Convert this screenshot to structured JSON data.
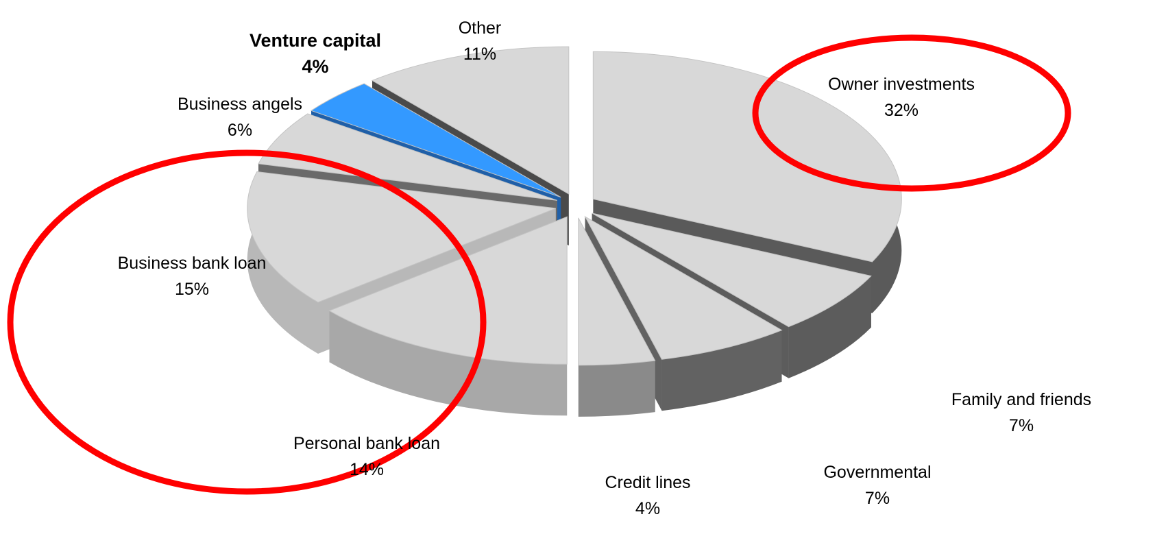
{
  "chart_data": {
    "type": "pie",
    "variant": "3d-exploded",
    "title": "",
    "slices": [
      {
        "label": "Owner investments",
        "value": 32,
        "value_label": "32%",
        "color": "#d8d8d8",
        "side_color": "#5a5a5a",
        "bold": false
      },
      {
        "label": "Family and friends",
        "value": 7,
        "value_label": "7%",
        "color": "#d8d8d8",
        "side_color": "#5c5c5c",
        "bold": false
      },
      {
        "label": "Governmental",
        "value": 7,
        "value_label": "7%",
        "color": "#d8d8d8",
        "side_color": "#626262",
        "bold": false
      },
      {
        "label": "Credit lines",
        "value": 4,
        "value_label": "4%",
        "color": "#d8d8d8",
        "side_color": "#8a8a8a",
        "bold": false
      },
      {
        "label": "Personal bank loan",
        "value": 14,
        "value_label": "14%",
        "color": "#d8d8d8",
        "side_color": "#a8a8a8",
        "bold": false
      },
      {
        "label": "Business bank loan",
        "value": 15,
        "value_label": "15%",
        "color": "#d8d8d8",
        "side_color": "#b8b8b8",
        "bold": false
      },
      {
        "label": "Business angels",
        "value": 6,
        "value_label": "6%",
        "color": "#d8d8d8",
        "side_color": "#6a6a6a",
        "bold": false
      },
      {
        "label": "Venture capital",
        "value": 4,
        "value_label": "4%",
        "color": "#3399ff",
        "side_color": "#1f5fa8",
        "bold": true
      },
      {
        "label": "Other",
        "value": 11,
        "value_label": "11%",
        "color": "#d8d8d8",
        "side_color": "#4a4a4a",
        "bold": false
      }
    ],
    "highlights": [
      {
        "target": "Owner investments",
        "shape": "ellipse",
        "color": "#ff0000"
      },
      {
        "target": [
          "Business bank loan",
          "Personal bank loan"
        ],
        "shape": "ellipse",
        "color": "#ff0000"
      }
    ],
    "legend": "none"
  }
}
